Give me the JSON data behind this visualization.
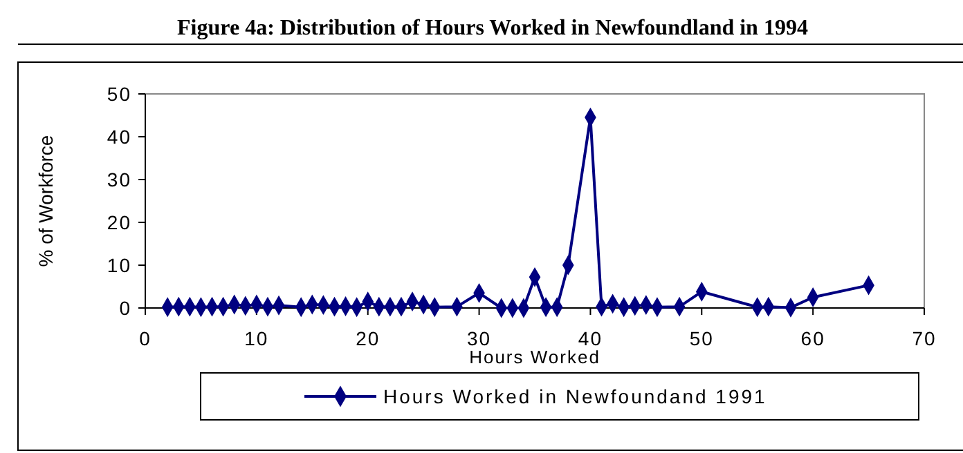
{
  "chart_data": {
    "type": "line",
    "title": "Figure 4a: Distribution of Hours Worked in Newfoundland in 1994",
    "xlabel": "Hours Worked",
    "ylabel": "% of Workforce",
    "x": [
      2,
      3,
      4,
      5,
      6,
      7,
      8,
      9,
      10,
      11,
      12,
      14,
      15,
      16,
      17,
      18,
      19,
      20,
      21,
      22,
      23,
      24,
      25,
      26,
      28,
      30,
      32,
      33,
      34,
      35,
      36,
      37,
      38,
      40,
      41,
      42,
      43,
      44,
      45,
      46,
      48,
      50,
      55,
      56,
      58,
      60,
      65
    ],
    "series": [
      {
        "name": "Hours Worked in Newfoundand 1991",
        "color": "#000080",
        "values": [
          0.2,
          0.3,
          0.3,
          0.2,
          0.3,
          0.3,
          0.8,
          0.5,
          0.8,
          0.3,
          0.6,
          0.2,
          0.8,
          0.7,
          0.3,
          0.4,
          0.2,
          1.5,
          0.3,
          0.3,
          0.3,
          1.5,
          0.8,
          0.2,
          0.3,
          3.5,
          0,
          0,
          0,
          7.2,
          0.2,
          0.2,
          10,
          44.5,
          0.3,
          1,
          0.2,
          0.5,
          0.7,
          0.2,
          0.3,
          3.8,
          0.2,
          0.3,
          0.1,
          2.5,
          5.3
        ]
      }
    ],
    "xlim": [
      0,
      70
    ],
    "xticks": [
      0,
      10,
      20,
      30,
      40,
      50,
      60,
      70
    ],
    "ylim": [
      0,
      50
    ],
    "yticks": [
      0,
      10,
      20,
      30,
      40,
      50
    ],
    "grid": false,
    "legend": "bottom",
    "marker": "diamond",
    "line_style": "solid"
  }
}
